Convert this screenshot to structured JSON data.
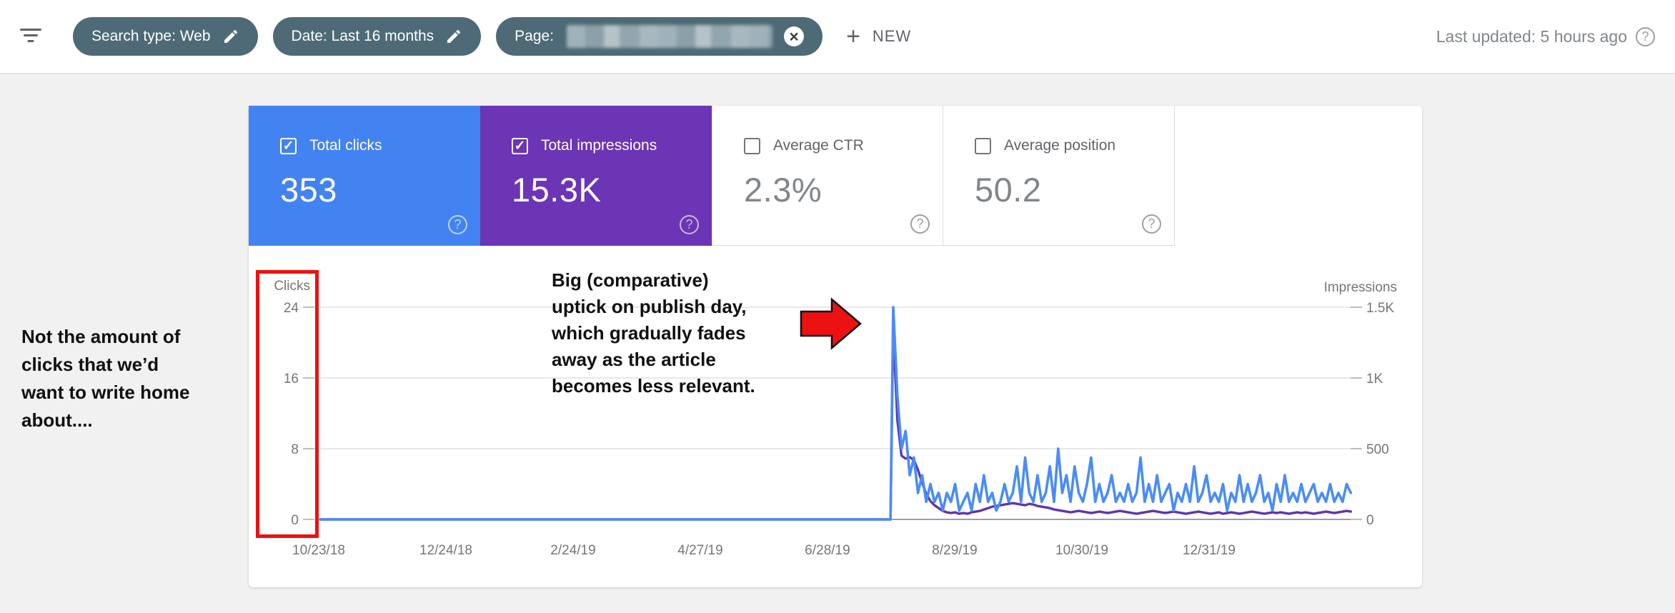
{
  "icons": {
    "help": "?",
    "close": "×",
    "plus": "+",
    "check": "✓"
  },
  "topbar": {
    "filter_icon": "filter-list-icon",
    "chips": [
      {
        "label": "Search type: Web",
        "icon": "edit-pencil"
      },
      {
        "label": "Date: Last 16 months",
        "icon": "edit-pencil"
      },
      {
        "label": "Page:",
        "redacted": true,
        "icon": "close"
      }
    ],
    "new_button": {
      "plus": "+",
      "label": "NEW"
    },
    "last_updated": "Last updated: 5 hours ago"
  },
  "metrics": {
    "tiles": [
      {
        "label": "Total clicks",
        "value": "353",
        "checked": true,
        "selected": true,
        "bg": "#4383f1",
        "label_color": "#ffffff",
        "value_color": "#ffffff",
        "checkbox_color": "#ffffff",
        "check_color": "#ffffff",
        "help_color": "rgba(255,255,255,0.65)"
      },
      {
        "label": "Total impressions",
        "value": "15.3K",
        "checked": true,
        "selected": true,
        "bg": "#6c35b5",
        "label_color": "#ffffff",
        "value_color": "#ffffff",
        "checkbox_color": "#ffffff",
        "check_color": "#ffffff",
        "help_color": "rgba(255,255,255,0.65)"
      },
      {
        "label": "Average CTR",
        "value": "2.3%",
        "checked": false,
        "selected": false,
        "bg": "#ffffff",
        "label_color": "#5f6368",
        "value_color": "#80868b",
        "checkbox_color": "#757575",
        "check_color": "#757575",
        "help_color": "#9aa0a6"
      },
      {
        "label": "Average position",
        "value": "50.2",
        "checked": false,
        "selected": false,
        "bg": "#ffffff",
        "label_color": "#5f6368",
        "value_color": "#80868b",
        "checkbox_color": "#757575",
        "check_color": "#757575",
        "help_color": "#9aa0a6"
      }
    ]
  },
  "annotations": {
    "left_note": "Not the amount of\nclicks that we’d\nwant to write home\nabout....",
    "callout": "Big (comparative)\nuptick on publish day,\nwhich gradually fades\naway as the article\nbecomes less relevant.",
    "red_rect": "highlights clicks y-axis scale",
    "red_arrow": "points at publish-day spike"
  },
  "chart_data": {
    "type": "line",
    "left_axis": {
      "label": "Clicks",
      "max": 24,
      "ticks": [
        "24",
        "16",
        "8",
        "0"
      ]
    },
    "right_axis": {
      "label": "Impressions",
      "max": 1500,
      "ticks": [
        "1.5K",
        "1K",
        "500",
        "0"
      ]
    },
    "x_ticks": [
      "10/23/18",
      "12/24/18",
      "2/24/19",
      "4/27/19",
      "6/28/19",
      "8/29/19",
      "10/30/19",
      "12/31/19"
    ],
    "grid": "horizontal-only",
    "peak": {
      "clicks": 24,
      "impressions": 1350,
      "x_fraction": 0.5562,
      "date_approx": "mid-July 2019 (publish day)"
    },
    "flat_until": 0.5535,
    "x_start": 0.5562,
    "x_step": 0.004,
    "series": [
      {
        "name": "Clicks",
        "axis": "left",
        "color": "#4a8cf7",
        "values": [
          24,
          14,
          8,
          10,
          5,
          7,
          3,
          5,
          2,
          4,
          2,
          3,
          1,
          3,
          2,
          4,
          1,
          2,
          3,
          1,
          4,
          2,
          5,
          2,
          3,
          1,
          2,
          4,
          2,
          3,
          6,
          2,
          7,
          3,
          2,
          5,
          2,
          3,
          6,
          2,
          8,
          3,
          5,
          2,
          6,
          3,
          2,
          4,
          7,
          2,
          4,
          2,
          3,
          5,
          2,
          3,
          2,
          4,
          2,
          3,
          7,
          2,
          4,
          2,
          5,
          2,
          3,
          4,
          1,
          3,
          2,
          4,
          2,
          6,
          2,
          3,
          5,
          2,
          3,
          2,
          4,
          1,
          3,
          2,
          5,
          2,
          4,
          2,
          3,
          5,
          2,
          3,
          1,
          4,
          2,
          5,
          2,
          3,
          2,
          4,
          2,
          3,
          4,
          2,
          3,
          2,
          4,
          2,
          3,
          2,
          4,
          3
        ]
      },
      {
        "name": "Impressions",
        "axis": "right",
        "color": "#5e35b1",
        "values": [
          1350,
          700,
          450,
          430,
          440,
          420,
          350,
          260,
          180,
          130,
          100,
          80,
          60,
          50,
          45,
          50,
          40,
          45,
          40,
          50,
          55,
          60,
          70,
          80,
          90,
          95,
          100,
          105,
          110,
          115,
          110,
          105,
          100,
          110,
          105,
          95,
          90,
          85,
          80,
          70,
          65,
          60,
          55,
          50,
          55,
          60,
          55,
          50,
          45,
          50,
          55,
          50,
          45,
          50,
          55,
          60,
          55,
          50,
          45,
          40,
          45,
          50,
          55,
          60,
          55,
          50,
          45,
          50,
          55,
          50,
          45,
          40,
          45,
          50,
          55,
          50,
          45,
          40,
          45,
          50,
          40,
          45,
          50,
          45,
          40,
          45,
          50,
          55,
          50,
          45,
          40,
          45,
          50,
          45,
          50,
          45,
          40,
          45,
          50,
          45,
          50,
          45,
          40,
          45,
          50,
          55,
          50,
          45,
          50,
          55,
          60,
          55
        ]
      }
    ]
  }
}
